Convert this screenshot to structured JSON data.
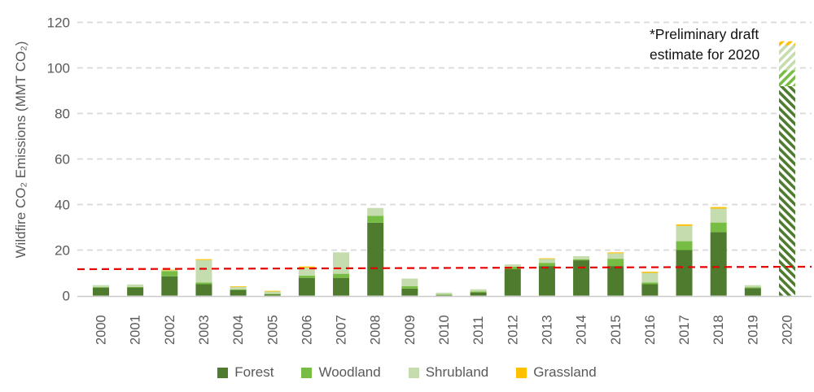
{
  "annotation": {
    "text": "*Preliminary draft\nestimate for 2020"
  },
  "chart_data": {
    "type": "bar",
    "stacked": true,
    "title": "",
    "xlabel": "",
    "ylabel": "Wildfire CO₂ Emissions (MMT CO₂)",
    "ylim": [
      0,
      120
    ],
    "yticks": [
      0,
      20,
      40,
      60,
      80,
      100,
      120
    ],
    "grid": true,
    "legend_position": "bottom",
    "categories": [
      "2000",
      "2001",
      "2002",
      "2003",
      "2004",
      "2005",
      "2006",
      "2007",
      "2008",
      "2009",
      "2010",
      "2011",
      "2012",
      "2013",
      "2014",
      "2015",
      "2016",
      "2017",
      "2018",
      "2019",
      "2020"
    ],
    "series": [
      {
        "name": "Forest",
        "color": "#4e7b2d",
        "values": [
          3.5,
          3.6,
          8.5,
          5.0,
          2.5,
          0.6,
          7.8,
          7.8,
          32.0,
          3.1,
          0.3,
          1.4,
          11.6,
          13.0,
          15.5,
          13.0,
          5.0,
          20.0,
          27.9,
          3.3,
          92.0
        ]
      },
      {
        "name": "Woodland",
        "color": "#77bd43",
        "values": [
          0.3,
          0.2,
          2.3,
          0.8,
          0.2,
          0.2,
          1.0,
          1.8,
          3.0,
          1.1,
          0.2,
          0.4,
          1.1,
          1.4,
          0.4,
          3.2,
          0.8,
          3.9,
          4.2,
          0.4,
          7.0
        ]
      },
      {
        "name": "Shrubland",
        "color": "#c5dcae",
        "values": [
          0.8,
          1.1,
          0.3,
          9.8,
          1.2,
          1.0,
          3.5,
          9.4,
          3.5,
          3.3,
          0.8,
          1.0,
          1.0,
          1.8,
          1.4,
          2.4,
          4.2,
          6.7,
          6.1,
          0.9,
          11.0
        ]
      },
      {
        "name": "Grassland",
        "color": "#ffc000",
        "values": [
          0.0,
          0.0,
          0.3,
          0.4,
          0.2,
          0.3,
          0.5,
          0.0,
          0.0,
          0.0,
          0.0,
          0.0,
          0.0,
          0.2,
          0.0,
          0.4,
          0.5,
          0.7,
          0.7,
          0.0,
          1.7
        ]
      }
    ],
    "hatched_categories": [
      "2020"
    ],
    "trendline": {
      "style": "dashed",
      "color": "#e60000",
      "start_value": 11.6,
      "end_value": 12.7
    },
    "colors": {
      "gridline": "#d9d9d9",
      "axis_line": "#c9c9c9",
      "axis_text": "#595959",
      "annotation_text": "#111111",
      "background": "#ffffff"
    }
  }
}
